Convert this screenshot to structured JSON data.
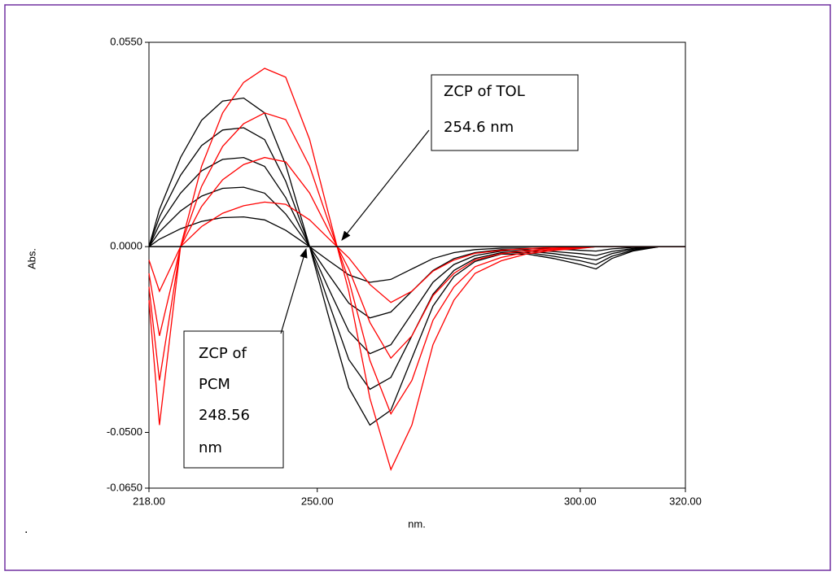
{
  "chart_data": {
    "type": "line",
    "x_label": "nm.",
    "y_label": "Abs.",
    "x": [
      218,
      220,
      224,
      228,
      232,
      236,
      240,
      244,
      248.56,
      252,
      256,
      260,
      264,
      268,
      272,
      276,
      280,
      285,
      290,
      295,
      300,
      303,
      306,
      310,
      315,
      320
    ],
    "series": [
      {
        "color": "#000000",
        "values": [
          0,
          0.01,
          0.024,
          0.034,
          0.0392,
          0.04,
          0.036,
          0.022,
          0,
          -0.018,
          -0.038,
          -0.048,
          -0.044,
          -0.03,
          -0.016,
          -0.008,
          -0.004,
          -0.002,
          -0.002,
          -0.0032,
          -0.0048,
          -0.006,
          -0.0032,
          -0.0012,
          0,
          0
        ]
      },
      {
        "color": "#000000",
        "values": [
          0,
          0.008,
          0.0192,
          0.0272,
          0.0314,
          0.032,
          0.0288,
          0.0176,
          0,
          -0.0144,
          -0.0304,
          -0.0384,
          -0.0352,
          -0.024,
          -0.0128,
          -0.0064,
          -0.0032,
          -0.0016,
          -0.0016,
          -0.0026,
          -0.0038,
          -0.0048,
          -0.0026,
          -0.001,
          0,
          0
        ]
      },
      {
        "color": "#000000",
        "values": [
          0,
          0.006,
          0.0144,
          0.0204,
          0.0235,
          0.024,
          0.0216,
          0.0132,
          0,
          -0.0108,
          -0.0228,
          -0.0288,
          -0.0264,
          -0.018,
          -0.0096,
          -0.0048,
          -0.0024,
          -0.0012,
          -0.0012,
          -0.0019,
          -0.0029,
          -0.0036,
          -0.0019,
          -0.0007,
          0,
          0
        ]
      },
      {
        "color": "#000000",
        "values": [
          0,
          0.004,
          0.0096,
          0.0136,
          0.0157,
          0.016,
          0.0144,
          0.0088,
          0,
          -0.0072,
          -0.0152,
          -0.0192,
          -0.0176,
          -0.012,
          -0.0064,
          -0.0032,
          -0.0016,
          -0.0008,
          -0.0008,
          -0.0013,
          -0.0019,
          -0.0024,
          -0.0013,
          -0.0005,
          0,
          0
        ]
      },
      {
        "color": "#000000",
        "values": [
          0,
          0.002,
          0.0048,
          0.0068,
          0.0078,
          0.008,
          0.0072,
          0.0044,
          0,
          -0.0036,
          -0.0076,
          -0.0096,
          -0.0088,
          -0.006,
          -0.0032,
          -0.0016,
          -0.0008,
          -0.0004,
          -0.0004,
          -0.0006,
          -0.001,
          -0.0012,
          -0.0006,
          -0.0002,
          0,
          0
        ]
      },
      {
        "color": "#ff0000",
        "values": [
          -0.0144,
          -0.048,
          0,
          0.0216,
          0.036,
          0.0442,
          0.048,
          0.0456,
          0.0288,
          0.0096,
          -0.012,
          -0.0408,
          -0.06,
          -0.048,
          -0.0264,
          -0.0144,
          -0.0072,
          -0.0038,
          -0.0019,
          -0.001,
          -0.0005,
          0,
          0,
          0,
          0,
          0
        ]
      },
      {
        "color": "#ff0000",
        "values": [
          -0.0108,
          -0.036,
          0,
          0.0162,
          0.027,
          0.0331,
          0.036,
          0.0342,
          0.0216,
          0.0072,
          -0.009,
          -0.0306,
          -0.045,
          -0.036,
          -0.0198,
          -0.0108,
          -0.0054,
          -0.0029,
          -0.0014,
          -0.0007,
          -0.0004,
          0,
          0,
          0,
          0,
          0
        ]
      },
      {
        "color": "#ff0000",
        "values": [
          -0.0072,
          -0.024,
          0,
          0.0108,
          0.018,
          0.0221,
          0.024,
          0.0228,
          0.0144,
          0.0048,
          -0.006,
          -0.0204,
          -0.03,
          -0.024,
          -0.0132,
          -0.0072,
          -0.0036,
          -0.0019,
          -0.001,
          -0.0005,
          -0.0002,
          0,
          0,
          0,
          0,
          0
        ]
      },
      {
        "color": "#ff0000",
        "values": [
          -0.0036,
          -0.012,
          0,
          0.0054,
          0.009,
          0.011,
          0.012,
          0.0114,
          0.0072,
          0.0024,
          -0.003,
          -0.0102,
          -0.015,
          -0.012,
          -0.0066,
          -0.0036,
          -0.0018,
          -0.001,
          -0.0005,
          -0.0002,
          -0.0001,
          0,
          0,
          0,
          0,
          0
        ]
      }
    ],
    "xlim": [
      218,
      320
    ],
    "xticks": [
      {
        "value": 218,
        "label": "218.00"
      },
      {
        "value": 250,
        "label": "250.00"
      },
      {
        "value": 300,
        "label": "300.00"
      },
      {
        "value": 320,
        "label": "320.00"
      }
    ],
    "ylim": [
      -0.065,
      0.055
    ],
    "yticks": [
      {
        "value": 0.055,
        "label": "0.0550"
      },
      {
        "value": 0,
        "label": "0.0000"
      },
      {
        "value": -0.05,
        "label": "-0.0500"
      },
      {
        "value": -0.065,
        "label": "-0.0650"
      }
    ],
    "annotations": [
      {
        "lines": [
          "ZCP of TOL",
          "254.6 nm"
        ]
      },
      {
        "lines": [
          "ZCP of",
          "PCM",
          "248.56",
          "nm"
        ]
      }
    ],
    "note": "."
  }
}
